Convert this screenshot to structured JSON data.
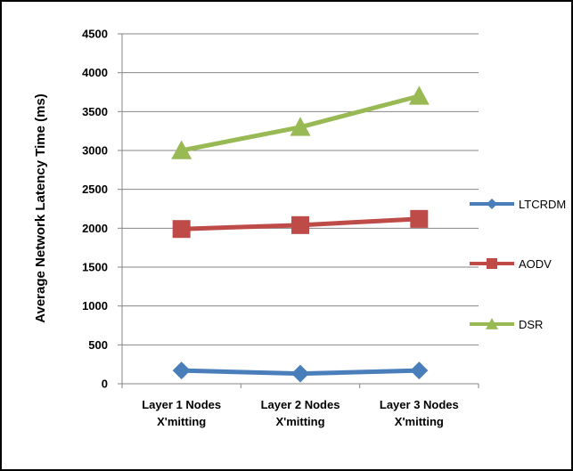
{
  "chart_data": {
    "type": "line",
    "title": "",
    "xlabel": "",
    "ylabel": "Average Network Latency Time (ms)",
    "categories": [
      [
        "Layer 1 Nodes",
        "X'mitting"
      ],
      [
        "Layer 2 Nodes",
        "X'mitting"
      ],
      [
        "Layer 3 Nodes",
        "X'mitting"
      ]
    ],
    "ylim": [
      0,
      4500
    ],
    "yticks": [
      "0",
      "500",
      "1000",
      "1500",
      "2000",
      "2500",
      "3000",
      "3500",
      "4000",
      "4500"
    ],
    "grid": true,
    "legend_position": "right",
    "series": [
      {
        "name": "LTCRDM",
        "values": [
          170,
          130,
          170
        ],
        "color": "#4a7ebb",
        "marker": "diamond"
      },
      {
        "name": "AODV",
        "values": [
          1990,
          2040,
          2120
        ],
        "color": "#be4b48",
        "marker": "square"
      },
      {
        "name": "DSR",
        "values": [
          3000,
          3300,
          3700
        ],
        "color": "#98b954",
        "marker": "triangle"
      }
    ]
  }
}
